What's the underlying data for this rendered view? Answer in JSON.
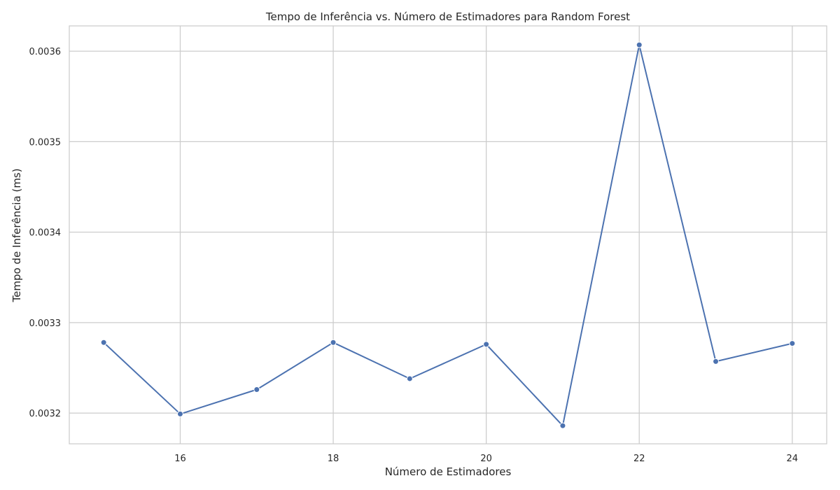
{
  "chart_data": {
    "type": "line",
    "title": "Tempo de Inferência vs. Número de Estimadores para Random Forest",
    "xlabel": "Número de Estimadores",
    "ylabel": "Tempo de Inferência (ms)",
    "x": [
      15,
      16,
      17,
      18,
      19,
      20,
      21,
      22,
      23,
      24
    ],
    "series": [
      {
        "values": [
          0.003278,
          0.003199,
          0.003226,
          0.003278,
          0.003238,
          0.003276,
          0.003186,
          0.003607,
          0.003257,
          0.003277
        ]
      }
    ],
    "xlim": [
      14.55,
      24.45
    ],
    "ylim": [
      0.003166,
      0.003628
    ],
    "xticks": [
      16,
      18,
      20,
      22,
      24
    ],
    "xtick_labels": [
      "16",
      "18",
      "20",
      "22",
      "24"
    ],
    "yticks": [
      0.0032,
      0.0033,
      0.0034,
      0.0035,
      0.0036
    ],
    "ytick_labels": [
      "0.0032",
      "0.0033",
      "0.0034",
      "0.0035",
      "0.0036"
    ],
    "grid": true,
    "colors": {
      "line": "#4c72b0",
      "grid": "#cccccc",
      "spine": "#cccccc",
      "text": "#262626"
    }
  }
}
